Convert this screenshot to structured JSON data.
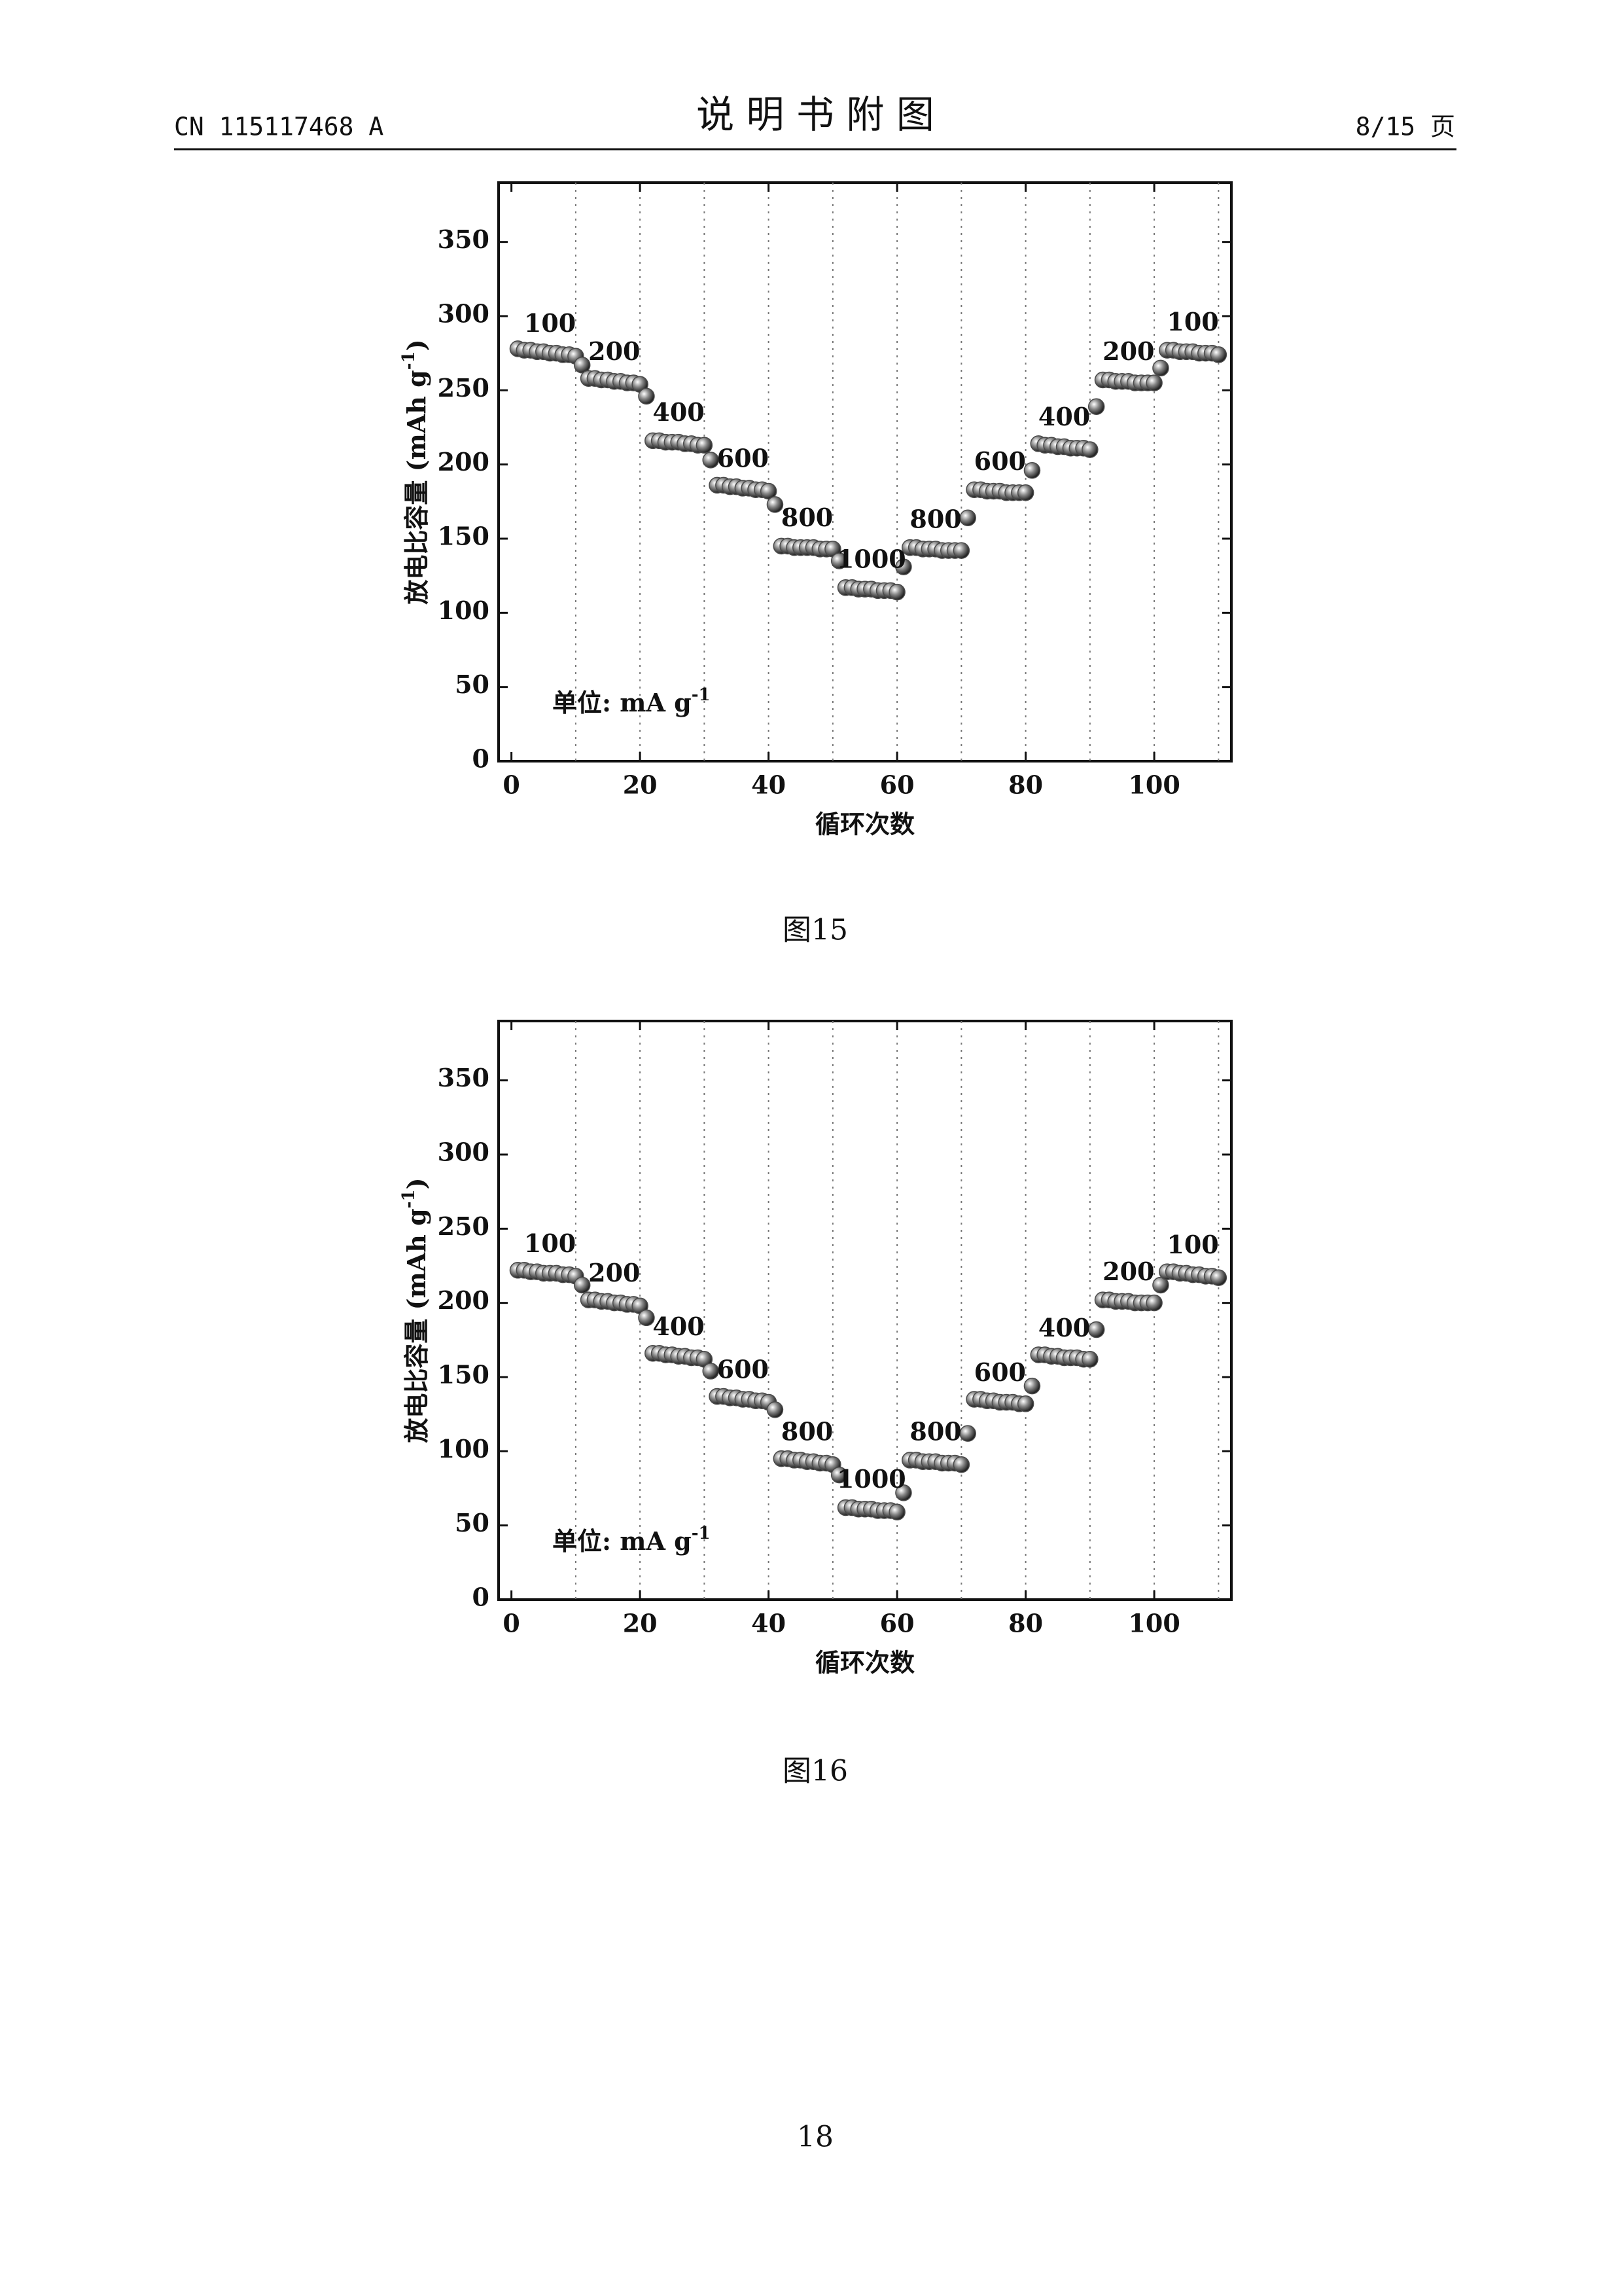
{
  "header": {
    "left": "CN 115117468 A",
    "title": "说 明 书 附 图",
    "right": "8/15 页"
  },
  "captions": [
    "图15",
    "图16"
  ],
  "page_number": "18",
  "chart_data": [
    {
      "type": "scatter",
      "xlabel": "循环次数",
      "ylabel": [
        "放电比容量 (mAh g",
        "-1",
        ")"
      ],
      "unit_note": [
        "单位: mA g",
        "-1"
      ],
      "annotations": [
        "100",
        "200",
        "400",
        "600",
        "800",
        "1000",
        "800",
        "600",
        "400",
        "200",
        "100"
      ],
      "color": "#4a4a4a",
      "xlim": [
        -2,
        112
      ],
      "ylim": [
        0,
        390
      ],
      "xticks": [
        0,
        20,
        40,
        60,
        80,
        100
      ],
      "yticks": [
        0,
        50,
        100,
        150,
        200,
        250,
        300,
        350
      ],
      "vlines": [
        10,
        20,
        30,
        40,
        50,
        60,
        70,
        80,
        90,
        100,
        110
      ],
      "x": [
        1,
        2,
        3,
        4,
        5,
        6,
        7,
        8,
        9,
        10,
        11,
        12,
        13,
        14,
        15,
        16,
        17,
        18,
        19,
        20,
        21,
        22,
        23,
        24,
        25,
        26,
        27,
        28,
        29,
        30,
        31,
        32,
        33,
        34,
        35,
        36,
        37,
        38,
        39,
        40,
        41,
        42,
        43,
        44,
        45,
        46,
        47,
        48,
        49,
        50,
        51,
        52,
        53,
        54,
        55,
        56,
        57,
        58,
        59,
        60,
        61,
        62,
        63,
        64,
        65,
        66,
        67,
        68,
        69,
        70,
        71,
        72,
        73,
        74,
        75,
        76,
        77,
        78,
        79,
        80,
        81,
        82,
        83,
        84,
        85,
        86,
        87,
        88,
        89,
        90,
        91,
        92,
        93,
        94,
        95,
        96,
        97,
        98,
        99,
        100,
        101,
        102,
        103,
        104,
        105,
        106,
        107,
        108,
        109,
        110
      ],
      "values": [
        278,
        277,
        277,
        276,
        276,
        275,
        275,
        274,
        274,
        273,
        267,
        258,
        258,
        257,
        257,
        256,
        256,
        255,
        255,
        254,
        246,
        216,
        216,
        215,
        215,
        215,
        214,
        214,
        213,
        213,
        203,
        186,
        186,
        185,
        185,
        184,
        184,
        183,
        183,
        182,
        173,
        145,
        145,
        144,
        144,
        144,
        144,
        143,
        143,
        143,
        135,
        117,
        117,
        116,
        116,
        116,
        115,
        115,
        115,
        114,
        131,
        144,
        144,
        143,
        143,
        143,
        142,
        142,
        142,
        142,
        164,
        183,
        183,
        182,
        182,
        182,
        181,
        181,
        181,
        181,
        196,
        214,
        213,
        213,
        212,
        212,
        211,
        211,
        211,
        210,
        239,
        257,
        257,
        256,
        256,
        256,
        255,
        255,
        255,
        255,
        265,
        277,
        277,
        276,
        276,
        276,
        275,
        275,
        275,
        274
      ]
    },
    {
      "type": "scatter",
      "xlabel": "循环次数",
      "ylabel": [
        "放电比容量 (mAh g",
        "-1",
        ")"
      ],
      "unit_note": [
        "单位: mA g",
        "-1"
      ],
      "annotations": [
        "100",
        "200",
        "400",
        "600",
        "800",
        "1000",
        "800",
        "600",
        "400",
        "200",
        "100"
      ],
      "color": "#4a4a4a",
      "xlim": [
        -2,
        112
      ],
      "ylim": [
        0,
        390
      ],
      "xticks": [
        0,
        20,
        40,
        60,
        80,
        100
      ],
      "yticks": [
        0,
        50,
        100,
        150,
        200,
        250,
        300,
        350
      ],
      "vlines": [
        10,
        20,
        30,
        40,
        50,
        60,
        70,
        80,
        90,
        100,
        110
      ],
      "x": [
        1,
        2,
        3,
        4,
        5,
        6,
        7,
        8,
        9,
        10,
        11,
        12,
        13,
        14,
        15,
        16,
        17,
        18,
        19,
        20,
        21,
        22,
        23,
        24,
        25,
        26,
        27,
        28,
        29,
        30,
        31,
        32,
        33,
        34,
        35,
        36,
        37,
        38,
        39,
        40,
        41,
        42,
        43,
        44,
        45,
        46,
        47,
        48,
        49,
        50,
        51,
        52,
        53,
        54,
        55,
        56,
        57,
        58,
        59,
        60,
        61,
        62,
        63,
        64,
        65,
        66,
        67,
        68,
        69,
        70,
        71,
        72,
        73,
        74,
        75,
        76,
        77,
        78,
        79,
        80,
        81,
        82,
        83,
        84,
        85,
        86,
        87,
        88,
        89,
        90,
        91,
        92,
        93,
        94,
        95,
        96,
        97,
        98,
        99,
        100,
        101,
        102,
        103,
        104,
        105,
        106,
        107,
        108,
        109,
        110
      ],
      "values": [
        222,
        222,
        221,
        221,
        220,
        220,
        220,
        219,
        219,
        218,
        212,
        202,
        202,
        201,
        201,
        200,
        200,
        199,
        199,
        198,
        190,
        166,
        166,
        165,
        165,
        164,
        164,
        163,
        163,
        162,
        154,
        137,
        137,
        136,
        136,
        135,
        135,
        134,
        134,
        133,
        128,
        95,
        95,
        94,
        94,
        93,
        93,
        92,
        92,
        91,
        84,
        62,
        62,
        61,
        61,
        61,
        60,
        60,
        60,
        59,
        72,
        94,
        94,
        93,
        93,
        93,
        92,
        92,
        92,
        91,
        112,
        135,
        135,
        134,
        134,
        133,
        133,
        133,
        132,
        132,
        144,
        165,
        165,
        164,
        164,
        163,
        163,
        163,
        162,
        162,
        182,
        202,
        202,
        201,
        201,
        201,
        200,
        200,
        200,
        200,
        212,
        221,
        221,
        220,
        220,
        219,
        219,
        218,
        218,
        217
      ]
    }
  ]
}
